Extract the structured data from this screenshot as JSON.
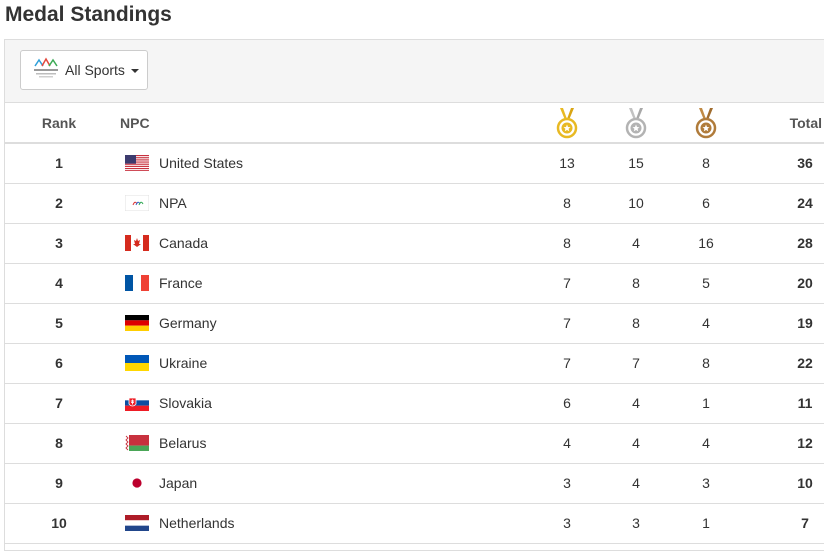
{
  "page": {
    "title": "Medal Standings"
  },
  "filter": {
    "label": "All Sports"
  },
  "table": {
    "headers": {
      "rank": "Rank",
      "npc": "NPC",
      "total": "Total"
    },
    "rows": [
      {
        "rank": "1",
        "npc": "United States",
        "flag": "us",
        "gold": "13",
        "silver": "15",
        "bronze": "8",
        "total": "36"
      },
      {
        "rank": "2",
        "npc": "NPA",
        "flag": "npa",
        "gold": "8",
        "silver": "10",
        "bronze": "6",
        "total": "24"
      },
      {
        "rank": "3",
        "npc": "Canada",
        "flag": "ca",
        "gold": "8",
        "silver": "4",
        "bronze": "16",
        "total": "28"
      },
      {
        "rank": "4",
        "npc": "France",
        "flag": "fr",
        "gold": "7",
        "silver": "8",
        "bronze": "5",
        "total": "20"
      },
      {
        "rank": "5",
        "npc": "Germany",
        "flag": "de",
        "gold": "7",
        "silver": "8",
        "bronze": "4",
        "total": "19"
      },
      {
        "rank": "6",
        "npc": "Ukraine",
        "flag": "ua",
        "gold": "7",
        "silver": "7",
        "bronze": "8",
        "total": "22"
      },
      {
        "rank": "7",
        "npc": "Slovakia",
        "flag": "sk",
        "gold": "6",
        "silver": "4",
        "bronze": "1",
        "total": "11"
      },
      {
        "rank": "8",
        "npc": "Belarus",
        "flag": "by",
        "gold": "4",
        "silver": "4",
        "bronze": "4",
        "total": "12"
      },
      {
        "rank": "9",
        "npc": "Japan",
        "flag": "jp",
        "gold": "3",
        "silver": "4",
        "bronze": "3",
        "total": "10"
      },
      {
        "rank": "10",
        "npc": "Netherlands",
        "flag": "nl",
        "gold": "3",
        "silver": "3",
        "bronze": "1",
        "total": "7"
      }
    ]
  },
  "colors": {
    "gold": "#e8b923",
    "silver": "#b3b3b3",
    "bronze": "#b07b3a"
  },
  "icons": {
    "gold": "gold-medal-icon",
    "silver": "silver-medal-icon",
    "bronze": "bronze-medal-icon"
  }
}
